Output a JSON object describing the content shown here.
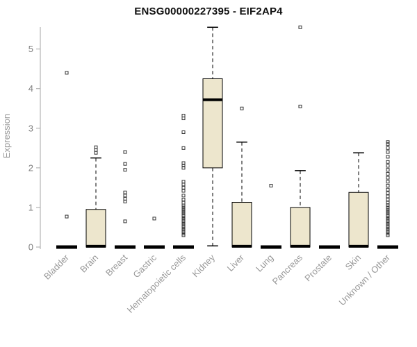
{
  "chart_data": {
    "type": "boxplot",
    "title": "ENSG00000227395 - EIF2AP4",
    "ylabel": "Expression",
    "ylim": [
      0,
      5.66
    ],
    "yticks": [
      0,
      1,
      2,
      3,
      4,
      5
    ],
    "grid": false,
    "legend": "none",
    "box_fill": "#EDE6CD",
    "box_stroke": "#000000",
    "median_color": "#000000",
    "outlier_color": "#333333",
    "axis_color": "#A6A6A6",
    "tick_label_color": "#7F7F7F",
    "category_label_color": "#999999",
    "title_color": "#111111",
    "categories": [
      "Bladder",
      "Brain",
      "Breast",
      "Gastric",
      "Hematopoietic cells",
      "Kidney",
      "Liver",
      "Lung",
      "Pancreas",
      "Prostate",
      "Skin",
      "Unknown / Other"
    ],
    "boxes": [
      {
        "category": "Bladder",
        "low": 0,
        "q1": 0,
        "median": 0,
        "q3": 0,
        "high": 0,
        "outliers": [
          0.77,
          4.4
        ]
      },
      {
        "category": "Brain",
        "low": 0,
        "q1": 0,
        "median": 0.02,
        "q3": 0.95,
        "high": 2.25,
        "outliers": [
          2.38,
          2.45,
          2.52
        ]
      },
      {
        "category": "Breast",
        "low": 0,
        "q1": 0,
        "median": 0,
        "q3": 0,
        "high": 0,
        "outliers": [
          0.65,
          1.15,
          1.22,
          1.3,
          1.38,
          1.95,
          2.1,
          2.4
        ]
      },
      {
        "category": "Gastric",
        "low": 0,
        "q1": 0,
        "median": 0,
        "q3": 0,
        "high": 0,
        "outliers": [
          0.72
        ]
      },
      {
        "category": "Hematopoietic cells",
        "low": 0,
        "q1": 0,
        "median": 0,
        "q3": 0,
        "high": 0,
        "outliers": [
          0.3,
          0.34,
          0.38,
          0.42,
          0.46,
          0.5,
          0.54,
          0.58,
          0.62,
          0.66,
          0.7,
          0.74,
          0.78,
          0.82,
          0.86,
          0.9,
          0.95,
          1.0,
          1.05,
          1.12,
          1.2,
          1.3,
          1.42,
          1.5,
          1.58,
          1.65,
          2.0,
          2.06,
          2.12,
          2.5,
          2.9,
          3.25,
          3.32
        ]
      },
      {
        "category": "Kidney",
        "low": 0.03,
        "q1": 2.0,
        "median": 3.72,
        "q3": 4.25,
        "high": 5.55,
        "outliers": []
      },
      {
        "category": "Liver",
        "low": 0,
        "q1": 0,
        "median": 0.02,
        "q3": 1.13,
        "high": 2.65,
        "outliers": [
          3.5
        ]
      },
      {
        "category": "Lung",
        "low": 0,
        "q1": 0,
        "median": 0,
        "q3": 0,
        "high": 0,
        "outliers": [
          1.55
        ]
      },
      {
        "category": "Pancreas",
        "low": 0,
        "q1": 0,
        "median": 0.02,
        "q3": 1.0,
        "high": 1.93,
        "outliers": [
          3.55,
          5.55
        ]
      },
      {
        "category": "Prostate",
        "low": 0,
        "q1": 0,
        "median": 0,
        "q3": 0,
        "high": 0,
        "outliers": []
      },
      {
        "category": "Skin",
        "low": 0,
        "q1": 0,
        "median": 0.02,
        "q3": 1.38,
        "high": 2.38,
        "outliers": []
      },
      {
        "category": "Unknown / Other",
        "low": 0,
        "q1": 0,
        "median": 0,
        "q3": 0,
        "high": 0,
        "outliers": [
          0.3,
          0.34,
          0.38,
          0.42,
          0.46,
          0.5,
          0.54,
          0.58,
          0.62,
          0.66,
          0.7,
          0.74,
          0.78,
          0.82,
          0.86,
          0.9,
          0.95,
          1.0,
          1.06,
          1.12,
          1.2,
          1.28,
          1.36,
          1.45,
          1.55,
          1.65,
          1.75,
          1.85,
          1.95,
          2.05,
          2.15,
          2.28,
          2.4,
          2.5,
          2.6,
          2.65
        ]
      }
    ]
  }
}
